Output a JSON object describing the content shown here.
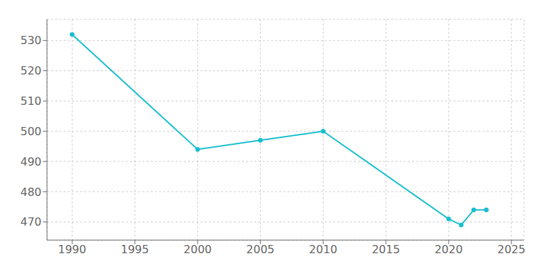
{
  "chart_data": {
    "type": "line",
    "x": [
      1990,
      2000,
      2005,
      2010,
      2020,
      2021,
      2022,
      2023
    ],
    "values": [
      532,
      494,
      497,
      500,
      471,
      469,
      474,
      474
    ],
    "color": "#17BECF",
    "marker": "circle",
    "xlim": [
      1988,
      2026
    ],
    "ylim": [
      464,
      537
    ],
    "xticks": [
      1990,
      1995,
      2000,
      2005,
      2010,
      2015,
      2020,
      2025
    ],
    "yticks": [
      470,
      480,
      490,
      500,
      510,
      520,
      530
    ],
    "grid": true
  }
}
